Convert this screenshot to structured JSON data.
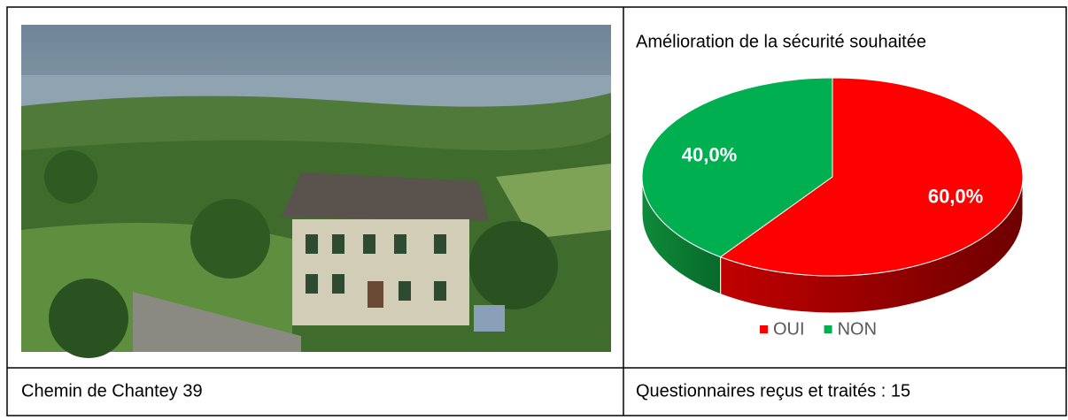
{
  "photo_caption": "Chemin de Chantey 39",
  "summary": "Questionnaires reçus et traités : 15",
  "chart_data": {
    "type": "pie3d",
    "title": "Amélioration de la sécurité souhaitée",
    "categories": [
      "OUI",
      "NON"
    ],
    "values": [
      60,
      40
    ],
    "value_labels": [
      "60,0%",
      "40,0%"
    ],
    "colors": [
      "#ff0000",
      "#00b050"
    ],
    "legend": "bottom"
  }
}
